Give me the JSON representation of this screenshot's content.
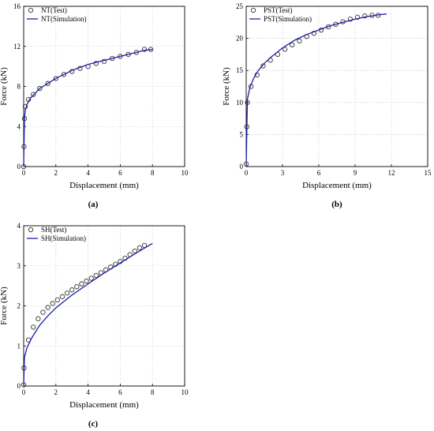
{
  "colors": {
    "simulation": "#1f1fa8",
    "test_marker": "#333333",
    "grid": "#cccccc"
  },
  "chart_data": [
    {
      "type": "line",
      "panel_label": "(a)",
      "xlabel": "Displacement (mm)",
      "ylabel": "Force (kN)",
      "xlim": [
        0,
        10
      ],
      "ylim": [
        0,
        16
      ],
      "xticks": [
        0,
        2,
        4,
        6,
        8,
        10
      ],
      "yticks": [
        0,
        4,
        8,
        12,
        16
      ],
      "grid": true,
      "legend": "top-left",
      "series": [
        {
          "name": "NT(Test)",
          "marker": "circle",
          "x": [
            0.0,
            0.02,
            0.05,
            0.1,
            0.3,
            0.6,
            1.0,
            1.5,
            2.0,
            2.5,
            3.0,
            3.5,
            4.0,
            4.5,
            5.0,
            5.5,
            6.0,
            6.5,
            7.0,
            7.5,
            7.9
          ],
          "y": [
            0.0,
            2.0,
            4.8,
            6.0,
            6.7,
            7.2,
            7.8,
            8.3,
            8.8,
            9.2,
            9.5,
            9.8,
            10.0,
            10.3,
            10.5,
            10.8,
            11.0,
            11.2,
            11.4,
            11.7,
            11.7
          ]
        },
        {
          "name": "NT(Simulation)",
          "line": "solid",
          "x": [
            0.0,
            0.05,
            0.1,
            0.2,
            0.4,
            0.7,
            1.0,
            1.5,
            2.0,
            2.5,
            3.0,
            3.5,
            4.0,
            4.5,
            5.0,
            5.5,
            6.0,
            6.5,
            7.0,
            7.5,
            8.0
          ],
          "y": [
            0.0,
            4.8,
            5.6,
            6.2,
            6.8,
            7.3,
            7.8,
            8.3,
            8.8,
            9.2,
            9.6,
            9.9,
            10.2,
            10.4,
            10.6,
            10.8,
            11.0,
            11.2,
            11.4,
            11.6,
            11.7
          ]
        }
      ]
    },
    {
      "type": "line",
      "panel_label": "(b)",
      "xlabel": "Displacement (mm)",
      "ylabel": "Force (kN)",
      "xlim": [
        0,
        15
      ],
      "ylim": [
        0,
        25
      ],
      "xticks": [
        0,
        3,
        6,
        9,
        12,
        15
      ],
      "yticks": [
        0,
        5,
        10,
        15,
        20,
        25
      ],
      "grid": true,
      "legend": "top-left",
      "series": [
        {
          "name": "PST(Test)",
          "marker": "circle",
          "x": [
            0.0,
            0.05,
            0.1,
            0.4,
            0.9,
            1.4,
            2.0,
            2.6,
            3.2,
            3.8,
            4.4,
            5.0,
            5.6,
            6.2,
            6.8,
            7.4,
            8.0,
            8.6,
            9.2,
            9.8,
            10.4,
            10.9
          ],
          "y": [
            0.4,
            6.2,
            10.0,
            12.5,
            14.3,
            15.7,
            16.6,
            17.5,
            18.3,
            19.0,
            19.6,
            20.3,
            20.8,
            21.3,
            21.8,
            22.2,
            22.6,
            23.0,
            23.3,
            23.5,
            23.6,
            23.6
          ]
        },
        {
          "name": "PST(Simulation)",
          "line": "solid",
          "x": [
            0.0,
            0.1,
            0.3,
            0.6,
            1.0,
            1.5,
            2.0,
            3.0,
            4.0,
            5.0,
            6.0,
            7.0,
            8.0,
            9.0,
            10.0,
            11.0,
            11.6
          ],
          "y": [
            0.0,
            10.5,
            12.3,
            13.7,
            15.0,
            16.1,
            17.0,
            18.5,
            19.7,
            20.6,
            21.3,
            22.0,
            22.5,
            23.0,
            23.4,
            23.7,
            23.8
          ]
        }
      ]
    },
    {
      "type": "line",
      "panel_label": "(c)",
      "xlabel": "Displacement (mm)",
      "ylabel": "Force (kN)",
      "xlim": [
        0,
        10
      ],
      "ylim": [
        0,
        4
      ],
      "xticks": [
        0,
        2,
        4,
        6,
        8,
        10
      ],
      "yticks": [
        0,
        1,
        2,
        3,
        4
      ],
      "grid": true,
      "legend": "top-left",
      "series": [
        {
          "name": "SH(Test)",
          "marker": "circle",
          "x": [
            0.0,
            0.02,
            0.3,
            0.6,
            0.9,
            1.2,
            1.5,
            1.8,
            2.1,
            2.4,
            2.7,
            3.0,
            3.3,
            3.6,
            3.9,
            4.2,
            4.5,
            4.8,
            5.1,
            5.4,
            5.7,
            6.0,
            6.3,
            6.6,
            6.9,
            7.2,
            7.5
          ],
          "y": [
            0.03,
            0.45,
            1.15,
            1.47,
            1.68,
            1.84,
            1.96,
            2.06,
            2.15,
            2.23,
            2.32,
            2.4,
            2.48,
            2.55,
            2.62,
            2.69,
            2.76,
            2.83,
            2.9,
            2.97,
            3.04,
            3.11,
            3.19,
            3.28,
            3.37,
            3.45,
            3.51
          ]
        },
        {
          "name": "SH(Simulation)",
          "line": "solid",
          "x": [
            0.0,
            0.05,
            0.2,
            0.5,
            1.0,
            1.5,
            2.0,
            3.0,
            4.0,
            5.0,
            6.0,
            7.0,
            8.0
          ],
          "y": [
            0.0,
            0.72,
            0.95,
            1.2,
            1.52,
            1.75,
            1.95,
            2.27,
            2.55,
            2.82,
            3.07,
            3.32,
            3.56
          ]
        }
      ]
    }
  ]
}
